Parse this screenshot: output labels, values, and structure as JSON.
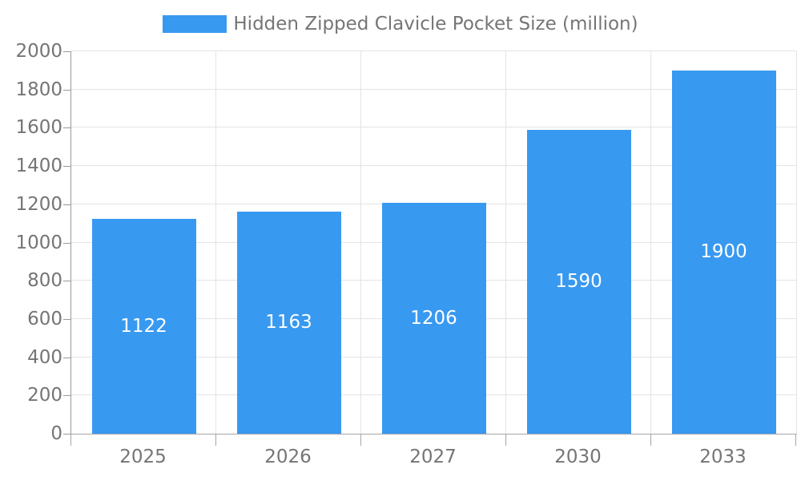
{
  "legend": {
    "label": "Hidden Zipped Clavicle Pocket Size (million)"
  },
  "chart_data": {
    "type": "bar",
    "title": "Hidden Zipped Clavicle Pocket Size (million)",
    "categories": [
      "2025",
      "2026",
      "2027",
      "2030",
      "2033"
    ],
    "values": [
      1122,
      1163,
      1206,
      1590,
      1900
    ],
    "value_labels": [
      "1122",
      "1163",
      "1206",
      "1590",
      "1900"
    ],
    "xlabel": "",
    "ylabel": "",
    "ylim": [
      0,
      2000
    ],
    "ytick_step": 200,
    "yticks": [
      0,
      200,
      400,
      600,
      800,
      1000,
      1200,
      1400,
      1600,
      1800,
      2000
    ],
    "grid": true,
    "legend_position": "top-center",
    "bar_color": "#3899f0",
    "value_label_color": "#ffffff",
    "grid_color": "#e4e4e4",
    "axis_color": "#999999",
    "tick_text_color": "#757575",
    "background_color": "#ffffff"
  }
}
